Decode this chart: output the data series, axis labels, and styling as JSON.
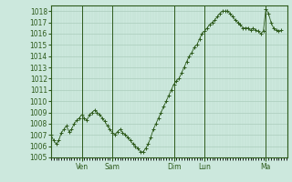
{
  "bg_color": "#cce8dd",
  "plot_bg_color": "#cce8dd",
  "line_color": "#2d5a1b",
  "marker_color": "#2d5a1b",
  "grid_color_major": "#aaccbb",
  "grid_color_minor": "#bbddcc",
  "tick_label_color": "#2d5a1b",
  "axis_color": "#2d5a1b",
  "spine_color": "#2d5a1b",
  "ylim": [
    1005.0,
    1018.5
  ],
  "yticks": [
    1005,
    1006,
    1007,
    1008,
    1009,
    1010,
    1011,
    1012,
    1013,
    1014,
    1015,
    1016,
    1017,
    1018
  ],
  "day_line_positions": [
    24,
    48,
    96,
    120,
    168
  ],
  "xtick_positions": [
    24,
    48,
    96,
    120,
    168
  ],
  "xtick_labels": [
    "Ven",
    "Sam",
    "Dim",
    "Lun",
    "Ma"
  ],
  "xlim": [
    0,
    185
  ],
  "x": [
    0,
    2,
    4,
    6,
    8,
    10,
    12,
    14,
    16,
    18,
    20,
    22,
    24,
    26,
    28,
    30,
    32,
    34,
    36,
    38,
    40,
    42,
    44,
    46,
    48,
    50,
    52,
    54,
    56,
    58,
    60,
    62,
    64,
    66,
    68,
    70,
    72,
    74,
    76,
    78,
    80,
    82,
    84,
    86,
    88,
    90,
    92,
    94,
    96,
    98,
    100,
    102,
    104,
    106,
    108,
    110,
    112,
    114,
    116,
    118,
    120,
    122,
    124,
    126,
    128,
    130,
    132,
    134,
    136,
    138,
    140,
    142,
    144,
    146,
    148,
    150,
    152,
    154,
    156,
    158,
    160,
    162,
    164,
    166,
    168,
    170,
    172,
    174,
    176,
    178,
    180
  ],
  "y": [
    1007.0,
    1006.5,
    1006.2,
    1006.5,
    1007.2,
    1007.5,
    1007.8,
    1007.3,
    1007.5,
    1008.0,
    1008.3,
    1008.5,
    1008.8,
    1008.5,
    1008.3,
    1008.8,
    1009.0,
    1009.2,
    1009.0,
    1008.8,
    1008.5,
    1008.2,
    1007.8,
    1007.5,
    1007.2,
    1007.0,
    1007.3,
    1007.5,
    1007.2,
    1007.0,
    1006.8,
    1006.5,
    1006.2,
    1006.0,
    1005.8,
    1005.5,
    1005.5,
    1005.8,
    1006.2,
    1006.8,
    1007.5,
    1008.0,
    1008.5,
    1009.0,
    1009.5,
    1010.0,
    1010.5,
    1011.0,
    1011.5,
    1011.8,
    1012.0,
    1012.5,
    1013.0,
    1013.5,
    1014.0,
    1014.3,
    1014.8,
    1015.0,
    1015.5,
    1016.0,
    1016.2,
    1016.5,
    1016.8,
    1017.0,
    1017.2,
    1017.5,
    1017.8,
    1018.0,
    1018.0,
    1018.0,
    1017.8,
    1017.5,
    1017.2,
    1017.0,
    1016.8,
    1016.5,
    1016.5,
    1016.5,
    1016.3,
    1016.5,
    1016.3,
    1016.2,
    1016.0,
    1016.2,
    1018.2,
    1017.8,
    1017.0,
    1016.5,
    1016.3,
    1016.2,
    1016.3
  ],
  "label_fontsize": 5.5,
  "tick_fontsize": 5.5
}
